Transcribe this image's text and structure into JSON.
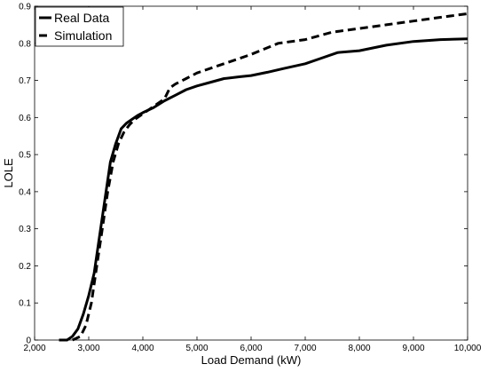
{
  "chart_data": {
    "type": "line",
    "title": "",
    "xlabel": "Load Demand (kW)",
    "ylabel": "LOLE",
    "xlim": [
      2000,
      10000
    ],
    "ylim": [
      0,
      0.9
    ],
    "xticks": [
      2000,
      3000,
      4000,
      5000,
      6000,
      7000,
      8000,
      9000,
      10000
    ],
    "xtick_labels": [
      "2,000",
      "3,000",
      "4,000",
      "5,000",
      "6,000",
      "7,000",
      "8,000",
      "9,000",
      "10,000"
    ],
    "yticks": [
      0,
      0.1,
      0.2,
      0.3,
      0.4,
      0.5,
      0.6,
      0.7,
      0.8,
      0.9
    ],
    "ytick_labels": [
      "0",
      "0.1",
      "0.2",
      "0.3",
      "0.4",
      "0.5",
      "0.6",
      "0.7",
      "0.8",
      "0.9"
    ],
    "grid": false,
    "legend_position": "top-left",
    "series": [
      {
        "name": "Real Data",
        "style": "solid",
        "color": "#000000",
        "x": [
          2450,
          2600,
          2700,
          2800,
          2900,
          3000,
          3100,
          3200,
          3300,
          3400,
          3500,
          3600,
          3700,
          3800,
          3900,
          4000,
          4200,
          4400,
          4600,
          4800,
          5000,
          5200,
          5500,
          5800,
          6000,
          6300,
          6600,
          7000,
          7300,
          7600,
          8000,
          8500,
          9000,
          9500,
          10000
        ],
        "y": [
          0.0,
          0.0,
          0.01,
          0.03,
          0.07,
          0.12,
          0.18,
          0.28,
          0.38,
          0.48,
          0.53,
          0.57,
          0.585,
          0.595,
          0.605,
          0.613,
          0.627,
          0.645,
          0.66,
          0.675,
          0.685,
          0.693,
          0.705,
          0.71,
          0.713,
          0.722,
          0.732,
          0.745,
          0.76,
          0.775,
          0.78,
          0.795,
          0.805,
          0.81,
          0.812
        ]
      },
      {
        "name": "Simulation",
        "style": "dashed",
        "color": "#000000",
        "x": [
          2700,
          2850,
          2950,
          3050,
          3150,
          3250,
          3350,
          3450,
          3550,
          3650,
          3750,
          3850,
          4000,
          4200,
          4400,
          4500,
          4600,
          4800,
          5000,
          5300,
          5600,
          6000,
          6500,
          7000,
          7500,
          8000,
          8500,
          9000,
          9500,
          10000
        ],
        "y": [
          0.0,
          0.01,
          0.04,
          0.1,
          0.2,
          0.3,
          0.4,
          0.48,
          0.53,
          0.56,
          0.58,
          0.595,
          0.61,
          0.63,
          0.65,
          0.68,
          0.69,
          0.705,
          0.72,
          0.735,
          0.75,
          0.77,
          0.8,
          0.81,
          0.83,
          0.84,
          0.85,
          0.86,
          0.87,
          0.88
        ]
      }
    ]
  }
}
